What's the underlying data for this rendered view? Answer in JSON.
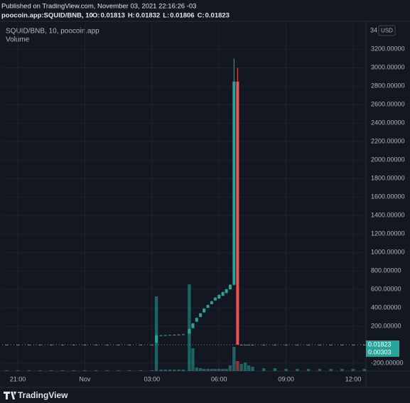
{
  "header": {
    "published": "Published on TradingView.com, November 03, 2021 22:16:26 -03",
    "symbol": "poocoin.app:SQUID/BNB, 10",
    "ohlc": [
      {
        "key": "O:",
        "text": "0.01813"
      },
      {
        "key": "H:",
        "text": "0.01832"
      },
      {
        "key": "L:",
        "text": "0.01806"
      },
      {
        "key": "C:",
        "text": "0.01823"
      }
    ]
  },
  "chart_data": {
    "type": "candlestick",
    "legend": "SQUID/BNB, 10, poocoin.app",
    "axis_top": "34",
    "currency": "USD",
    "x": [
      20.5,
      21,
      21.5,
      22,
      22.5,
      23,
      23.5,
      24,
      24.5,
      25,
      25.5,
      26,
      26.5,
      27,
      27.2,
      27.4,
      27.6,
      27.8,
      28.0,
      28.2,
      28.4,
      28.67,
      28.83,
      29.0,
      29.17,
      29.33,
      29.5,
      29.67,
      29.83,
      30.0,
      30.17,
      30.33,
      30.5,
      30.67,
      30.83,
      31.0,
      31.17,
      31.33,
      31.5,
      32,
      32.5,
      33,
      33.5,
      34,
      34.5,
      35,
      35.5,
      36,
      36.5
    ],
    "open": [
      0.01,
      0.01,
      0.01,
      0.01,
      0.01,
      0.01,
      0.01,
      0.01,
      0.01,
      0.01,
      0.01,
      0.01,
      0.01,
      0.01,
      20,
      100,
      102,
      104,
      106,
      108,
      110,
      120,
      180,
      250,
      300,
      350,
      400,
      440,
      480,
      500,
      530,
      560,
      600,
      650,
      2850,
      0.01,
      0.01,
      0.01,
      0.01,
      0.01,
      0.01,
      0.01,
      0.01,
      0.01,
      0.01,
      0.01,
      0.01,
      0.01,
      0.01
    ],
    "high": [
      0.01,
      0.01,
      0.01,
      0.01,
      0.01,
      0.01,
      0.01,
      0.01,
      0.01,
      0.01,
      0.01,
      0.01,
      0.01,
      0.01,
      110,
      104,
      106,
      108,
      110,
      112,
      118,
      175,
      235,
      295,
      345,
      395,
      435,
      475,
      515,
      545,
      575,
      605,
      655,
      3100,
      3000,
      0.02,
      0.02,
      0.02,
      0.02,
      0.02,
      0.02,
      0.02,
      0.02,
      0.02,
      0.02,
      0.02,
      0.02,
      0.02,
      0.02
    ],
    "low": [
      0.01,
      0.01,
      0.01,
      0.01,
      0.01,
      0.01,
      0.01,
      0.01,
      0.01,
      0.01,
      0.01,
      0.01,
      0.01,
      0.01,
      20,
      98,
      100,
      102,
      104,
      106,
      108,
      118,
      178,
      248,
      298,
      348,
      398,
      438,
      478,
      498,
      528,
      558,
      598,
      640,
      0.01,
      0.01,
      0.01,
      0.01,
      0.01,
      0.01,
      0.01,
      0.01,
      0.01,
      0.01,
      0.01,
      0.01,
      0.01,
      0.01,
      0.01
    ],
    "close": [
      0.01,
      0.01,
      0.01,
      0.01,
      0.01,
      0.01,
      0.01,
      0.01,
      0.01,
      0.01,
      0.01,
      0.01,
      0.01,
      0.01,
      100,
      102,
      104,
      106,
      108,
      110,
      112,
      170,
      230,
      290,
      340,
      390,
      430,
      470,
      510,
      540,
      570,
      600,
      650,
      2850,
      0.01,
      0.01,
      0.01,
      0.01,
      0.01,
      0.01,
      0.01,
      0.01,
      0.01,
      0.01,
      0.01,
      0.01,
      0.01,
      0.01,
      0.01
    ],
    "up_color": "#26a69a",
    "down_color": "#ef5350",
    "volume": {
      "name": "Volume",
      "up_color": "#26a69a88",
      "down_color": "#ef535088",
      "ylim": [
        0,
        140
      ],
      "values": [
        1,
        1,
        1,
        1,
        1,
        1,
        1,
        1,
        1,
        1,
        1,
        1,
        1,
        1,
        105,
        2,
        2,
        2,
        2,
        2,
        2,
        122,
        32,
        5,
        4,
        3,
        3,
        3,
        3,
        3,
        3,
        3,
        8,
        34,
        14,
        10,
        12,
        8,
        6,
        4,
        4,
        3,
        3,
        3,
        3,
        3,
        3,
        3,
        3
      ]
    },
    "xlim": [
      20.3,
      36.57
    ],
    "xticks": [
      {
        "value": 21,
        "label": "21:00"
      },
      {
        "value": 24,
        "label": "Nov"
      },
      {
        "value": 27,
        "label": "03:00"
      },
      {
        "value": 30,
        "label": "06:00"
      },
      {
        "value": 33,
        "label": "09:00"
      },
      {
        "value": 36,
        "label": "12:00"
      }
    ],
    "ylim": [
      -285,
      3480
    ],
    "yticks": [
      {
        "value": -200,
        "label": "-200.00000"
      },
      {
        "value": 200,
        "label": "200.00000"
      },
      {
        "value": 400,
        "label": "400.00000"
      },
      {
        "value": 600,
        "label": "600.00000"
      },
      {
        "value": 800,
        "label": "800.00000"
      },
      {
        "value": 1000,
        "label": "1000.00000"
      },
      {
        "value": 1200,
        "label": "1200.00000"
      },
      {
        "value": 1400,
        "label": "1400.00000"
      },
      {
        "value": 1600,
        "label": "1600.00000"
      },
      {
        "value": 1800,
        "label": "1800.00000"
      },
      {
        "value": 2000,
        "label": "2000.00000"
      },
      {
        "value": 2200,
        "label": "2200.00000"
      },
      {
        "value": 2400,
        "label": "2400.00000"
      },
      {
        "value": 2600,
        "label": "2600.00000"
      },
      {
        "value": 2800,
        "label": "2800.00000"
      },
      {
        "value": 3000,
        "label": "3000.00000"
      },
      {
        "value": 3200,
        "label": "3200.00000"
      }
    ],
    "grid": true,
    "last_price": 0.01823,
    "last_volume": 0.00303
  },
  "footer": {
    "brand": "TradingView"
  }
}
